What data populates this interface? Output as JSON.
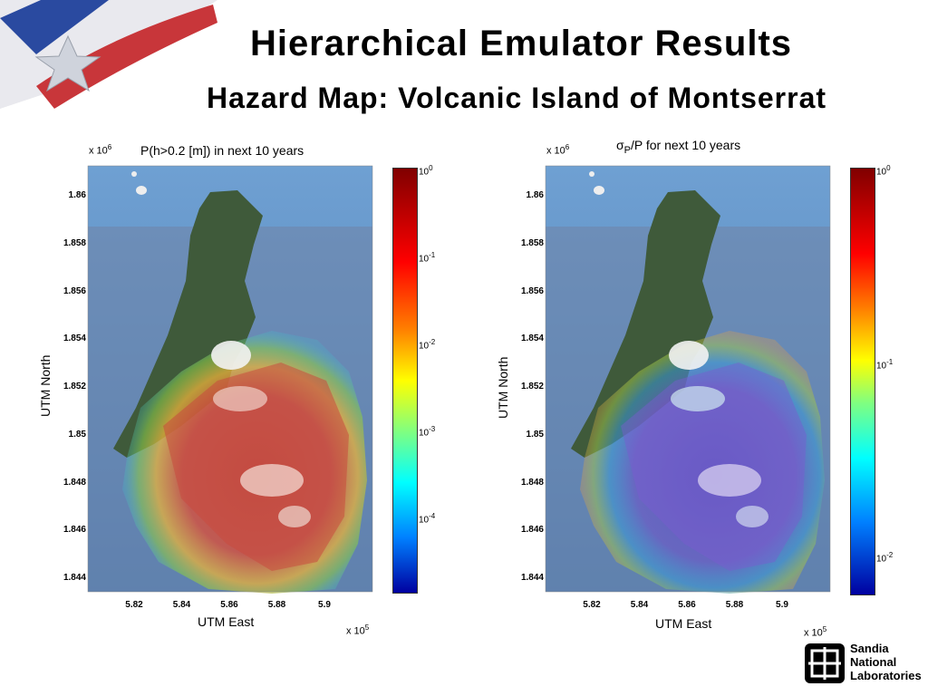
{
  "slide": {
    "title": "Hierarchical  Emulator  Results",
    "subtitle": "Hazard  Map:  Volcanic  Island  of  Montserrat"
  },
  "left_map": {
    "title": "P(h>0.2 [m]) in next 10 years",
    "y_scale_base": "x 10",
    "y_scale_exp": "6",
    "x_scale_base": "x 10",
    "x_scale_exp": "5",
    "xlabel": "UTM East",
    "ylabel": "UTM North",
    "y_ticks": [
      "1.86",
      "1.858",
      "1.856",
      "1.854",
      "1.852",
      "1.85",
      "1.848",
      "1.846",
      "1.844"
    ],
    "x_ticks": [
      "5.82",
      "5.84",
      "5.86",
      "5.88",
      "5.9"
    ],
    "colorbar": {
      "scale": "log",
      "range_exp": [
        -4.9,
        0
      ],
      "ticks": [
        {
          "base": "10",
          "exp": "0",
          "value": 0
        },
        {
          "base": "10",
          "exp": "-1",
          "value": -1
        },
        {
          "base": "10",
          "exp": "-2",
          "value": -2
        },
        {
          "base": "10",
          "exp": "-3",
          "value": -3
        },
        {
          "base": "10",
          "exp": "-4",
          "value": -4
        }
      ]
    }
  },
  "right_map": {
    "title_sigma": "σ",
    "title_sub": "P",
    "title_rest": "/P for next 10 years",
    "y_scale_base": "x 10",
    "y_scale_exp": "6",
    "x_scale_base": "x 10",
    "x_scale_exp": "5",
    "xlabel": "UTM East",
    "ylabel": "UTM North",
    "y_ticks": [
      "1.86",
      "1.858",
      "1.856",
      "1.854",
      "1.852",
      "1.85",
      "1.848",
      "1.846",
      "1.844"
    ],
    "x_ticks": [
      "5.82",
      "5.84",
      "5.86",
      "5.88",
      "5.9"
    ],
    "colorbar": {
      "scale": "log",
      "range_exp": [
        -2.2,
        0
      ],
      "ticks": [
        {
          "base": "10",
          "exp": "0",
          "value": 0
        },
        {
          "base": "10",
          "exp": "-1",
          "value": -1
        },
        {
          "base": "10",
          "exp": "-2",
          "value": -2
        }
      ]
    }
  },
  "logo": {
    "line1": "Sandia",
    "line2": "National",
    "line3": "Laboratories"
  },
  "colors": {
    "sea": "#5d8fc4",
    "island": "#3f5a3a",
    "hazard_high": "#c8463a",
    "uncertainty_low": "#6a5bc8"
  }
}
